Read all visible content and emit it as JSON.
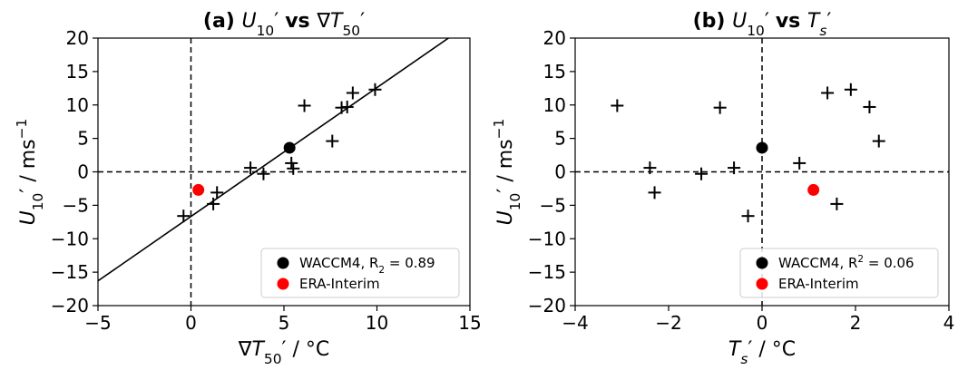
{
  "chart_data": [
    {
      "type": "scatter",
      "title_parts": [
        {
          "t": "(a) ",
          "b": true
        },
        {
          "t": "U",
          "i": true
        },
        {
          "t": "10",
          "sub": true
        },
        {
          "t": "′ "
        },
        {
          "t": "vs ",
          "b": true
        },
        {
          "t": "∇"
        },
        {
          "t": "T",
          "i": true
        },
        {
          "t": "50",
          "sub": true
        },
        {
          "t": "′"
        }
      ],
      "xlabel_parts": [
        {
          "t": "∇"
        },
        {
          "t": "T",
          "i": true
        },
        {
          "t": "50",
          "sub": true
        },
        {
          "t": "′ / °C"
        }
      ],
      "ylabel_parts": [
        {
          "t": "U",
          "i": true
        },
        {
          "t": "10",
          "sub": true
        },
        {
          "t": "′ / ms"
        },
        {
          "t": "−1",
          "sup": true
        }
      ],
      "xlim": [
        -5,
        15
      ],
      "ylim": [
        -20,
        20
      ],
      "xticks": [
        -5,
        0,
        5,
        10,
        15
      ],
      "xtick_labels": [
        "−5",
        "0",
        "5",
        "10",
        "15"
      ],
      "yticks": [
        -20,
        -15,
        -10,
        -5,
        0,
        5,
        10,
        15,
        20
      ],
      "ytick_labels": [
        "−20",
        "−15",
        "−10",
        "−5",
        "0",
        "5",
        "10",
        "15",
        "20"
      ],
      "series": [
        {
          "marker": "plus",
          "color": "#000000",
          "points": [
            [
              -0.4,
              -6.6
            ],
            [
              1.2,
              -4.8
            ],
            [
              1.4,
              -3.1
            ],
            [
              3.2,
              0.6
            ],
            [
              3.9,
              -0.3
            ],
            [
              5.4,
              1.3
            ],
            [
              5.5,
              0.5
            ],
            [
              6.1,
              9.9
            ],
            [
              7.6,
              4.6
            ],
            [
              8.1,
              9.6
            ],
            [
              8.4,
              9.7
            ],
            [
              8.7,
              11.8
            ],
            [
              9.9,
              12.3
            ]
          ]
        },
        {
          "name": "WACCM4, R₂ = 0.89",
          "legend_parts": [
            {
              "t": "WACCM4, R"
            },
            {
              "t": "2",
              "sub": true
            },
            {
              "t": " = 0.89"
            }
          ],
          "marker": "circle",
          "color": "#000000",
          "points": [
            [
              5.3,
              3.6
            ]
          ]
        },
        {
          "name": "ERA-Interim",
          "legend_parts": [
            {
              "t": "ERA-Interim"
            }
          ],
          "marker": "circle",
          "color": "#ff0000",
          "points": [
            [
              0.4,
              -2.7
            ]
          ]
        }
      ],
      "fit_line": {
        "x": [
          -5,
          14
        ],
        "y": [
          -16.3,
          20.3
        ],
        "color": "#000000"
      },
      "ref_lines": {
        "hline": 0,
        "vline": 0
      },
      "legend_position": "lower-right"
    },
    {
      "type": "scatter",
      "title_parts": [
        {
          "t": "(b) ",
          "b": true
        },
        {
          "t": "U",
          "i": true
        },
        {
          "t": "10",
          "sub": true
        },
        {
          "t": "′ "
        },
        {
          "t": "vs ",
          "b": true
        },
        {
          "t": "T",
          "i": true
        },
        {
          "t": "s",
          "sub": true,
          "i": true
        },
        {
          "t": "′"
        }
      ],
      "xlabel_parts": [
        {
          "t": "T",
          "i": true
        },
        {
          "t": "s",
          "sub": true,
          "i": true
        },
        {
          "t": "′ / °C"
        }
      ],
      "ylabel_parts": [
        {
          "t": "U",
          "i": true
        },
        {
          "t": "10",
          "sub": true
        },
        {
          "t": "′ / ms"
        },
        {
          "t": "−1",
          "sup": true
        }
      ],
      "xlim": [
        -4,
        4
      ],
      "ylim": [
        -20,
        20
      ],
      "xticks": [
        -4,
        -2,
        0,
        2,
        4
      ],
      "xtick_labels": [
        "−4",
        "−2",
        "0",
        "2",
        "4"
      ],
      "yticks": [
        -20,
        -15,
        -10,
        -5,
        0,
        5,
        10,
        15,
        20
      ],
      "ytick_labels": [
        "−20",
        "−15",
        "−10",
        "−5",
        "0",
        "5",
        "10",
        "15",
        "20"
      ],
      "series": [
        {
          "marker": "plus",
          "color": "#000000",
          "points": [
            [
              -3.1,
              9.9
            ],
            [
              -2.4,
              0.6
            ],
            [
              -2.3,
              -3.1
            ],
            [
              -1.3,
              -0.3
            ],
            [
              -0.9,
              9.6
            ],
            [
              -0.6,
              0.6
            ],
            [
              -0.3,
              -6.6
            ],
            [
              0.8,
              1.3
            ],
            [
              1.4,
              11.8
            ],
            [
              1.6,
              -4.8
            ],
            [
              1.9,
              12.3
            ],
            [
              2.3,
              9.7
            ],
            [
              2.5,
              4.6
            ]
          ]
        },
        {
          "name": "WACCM4, R² = 0.06",
          "legend_parts": [
            {
              "t": "WACCM4, R"
            },
            {
              "t": "2",
              "sup": true
            },
            {
              "t": " = 0.06"
            }
          ],
          "marker": "circle",
          "color": "#000000",
          "points": [
            [
              0.0,
              3.6
            ]
          ]
        },
        {
          "name": "ERA-Interim",
          "legend_parts": [
            {
              "t": "ERA-Interim"
            }
          ],
          "marker": "circle",
          "color": "#ff0000",
          "points": [
            [
              1.1,
              -2.7
            ]
          ]
        }
      ],
      "ref_lines": {
        "hline": 0,
        "vline": 0
      },
      "legend_position": "lower-right"
    }
  ]
}
